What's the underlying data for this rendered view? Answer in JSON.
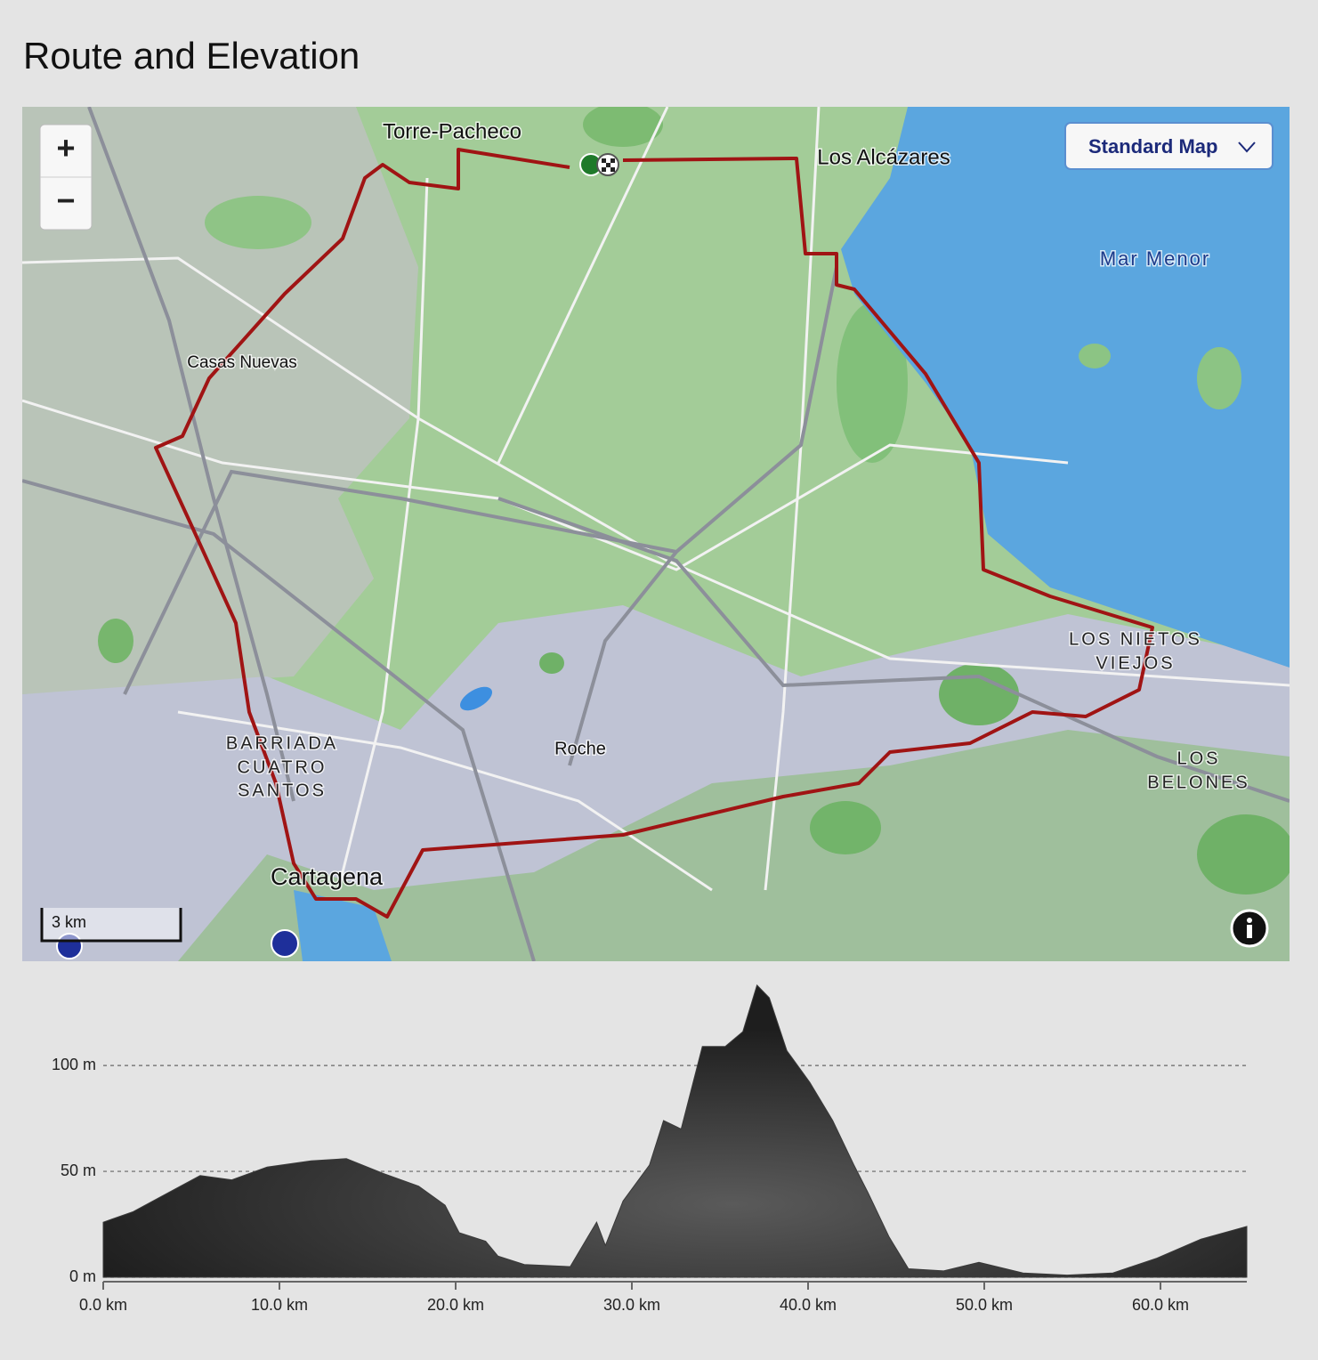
{
  "header": {
    "title": "Route and Elevation"
  },
  "map": {
    "zoom_in": "+",
    "zoom_out": "−",
    "layer_button": "Standard Map",
    "scale": "3 km",
    "labels": [
      "Torre-Pacheco",
      "Los Alcázares",
      "Mar Menor",
      "Casas Nuevas",
      "LOS NIETOS",
      "VIEJOS",
      "BARRIADA",
      "CUATRO",
      "SANTOS",
      "Roche",
      "LOS",
      "BELONES",
      "Cartagena"
    ]
  },
  "chart_data": {
    "type": "area",
    "x": [
      0,
      1.7,
      3.7,
      5.5,
      7.3,
      9.3,
      11.8,
      13.8,
      15.9,
      17.9,
      19.4,
      20.2,
      21.7,
      22.4,
      23.9,
      26.5,
      27.5,
      28.0,
      28.5,
      29.5,
      31.0,
      31.8,
      32.8,
      34.0,
      35.3,
      36.3,
      37.1,
      37.8,
      38.8,
      40.1,
      41.4,
      42.6,
      43.4,
      44.6,
      45.7,
      47.7,
      49.7,
      52.2,
      54.7,
      57.3,
      59.8,
      62.3,
      64.9
    ],
    "values": [
      26,
      31,
      40,
      48,
      46,
      52,
      55,
      56,
      49,
      43,
      34,
      21,
      17,
      10,
      6,
      5,
      19,
      26,
      15,
      36,
      53,
      74,
      70,
      109,
      109,
      116,
      138,
      132,
      107,
      92,
      74,
      53,
      40,
      19,
      4,
      3,
      7,
      2,
      1,
      2,
      9,
      18,
      24
    ],
    "color": "#3a3a3a",
    "xlim": [
      0,
      64.9
    ],
    "ylim": [
      0,
      140
    ],
    "xticks": [
      {
        "value": 0,
        "label": "0.0 km"
      },
      {
        "value": 10,
        "label": "10.0 km"
      },
      {
        "value": 20,
        "label": "20.0 km"
      },
      {
        "value": 30,
        "label": "30.0 km"
      },
      {
        "value": 40,
        "label": "40.0 km"
      },
      {
        "value": 50,
        "label": "50.0 km"
      },
      {
        "value": 60,
        "label": "60.0 km"
      }
    ],
    "yticks": [
      {
        "value": 0,
        "label": "0 m"
      },
      {
        "value": 50,
        "label": "50 m"
      },
      {
        "value": 100,
        "label": "100 m"
      }
    ],
    "grid": true
  }
}
